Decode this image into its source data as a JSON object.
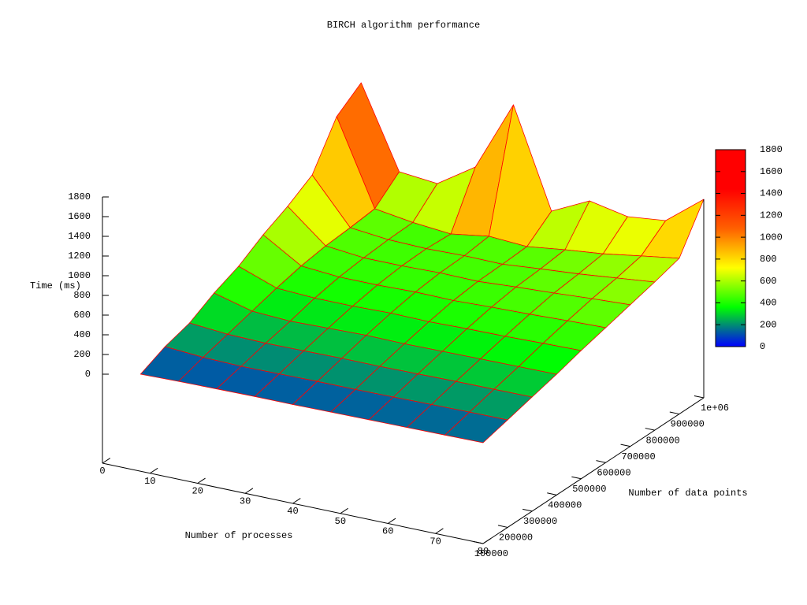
{
  "chart_data": {
    "type": "surface",
    "title": "BIRCH algorithm performance",
    "x_label": "Number of processes",
    "y_label": "Number of data points",
    "z_label": "Time (ms)",
    "x": [
      8,
      16,
      24,
      32,
      40,
      48,
      56,
      64,
      72,
      80
    ],
    "y": [
      100000,
      200000,
      300000,
      400000,
      500000,
      600000,
      700000,
      800000,
      900000,
      1000000
    ],
    "z": [
      [
        82,
        90,
        95,
        100,
        100,
        105,
        108,
        112,
        116,
        120
      ],
      [
        197,
        170,
        160,
        165,
        170,
        170,
        175,
        180,
        185,
        187
      ],
      [
        273,
        240,
        230,
        235,
        240,
        240,
        245,
        250,
        252,
        255
      ],
      [
        412,
        310,
        290,
        300,
        310,
        305,
        310,
        315,
        318,
        322
      ],
      [
        520,
        380,
        360,
        360,
        370,
        365,
        375,
        380,
        390,
        398
      ],
      [
        675,
        440,
        410,
        410,
        420,
        415,
        430,
        440,
        455,
        466
      ],
      [
        800,
        480,
        440,
        440,
        450,
        445,
        470,
        490,
        515,
        534
      ],
      [
        954,
        500,
        460,
        450,
        460,
        455,
        490,
        520,
        560,
        601
      ],
      [
        1382,
        528,
        470,
        435,
        493,
        470,
        520,
        560,
        620,
        677
      ],
      [
        1562,
        739,
        701,
        950,
        1664,
        666,
        851,
        773,
        814,
        1112
      ]
    ],
    "xlim": [
      0,
      80
    ],
    "xticks": [
      0,
      10,
      20,
      30,
      40,
      50,
      60,
      70,
      80
    ],
    "ylim": [
      100000,
      1000000
    ],
    "yticks": [
      100000,
      200000,
      300000,
      400000,
      500000,
      600000,
      700000,
      800000,
      900000,
      {
        "value": 1000000,
        "label": "1e+06"
      }
    ],
    "zlim": [
      0,
      1800
    ],
    "zticks": [
      0,
      200,
      400,
      600,
      800,
      1000,
      1200,
      1400,
      1600,
      1800
    ],
    "cblim": [
      0,
      1800
    ],
    "cbticks": [
      0,
      200,
      400,
      600,
      800,
      1000,
      1200,
      1400,
      1600,
      1800
    ],
    "palette": [
      "#0000ff",
      "#00ff00",
      "#ffff00",
      "#ff6000",
      "#ff0000",
      "#ff0000"
    ],
    "mesh_color": "#ff0000"
  }
}
